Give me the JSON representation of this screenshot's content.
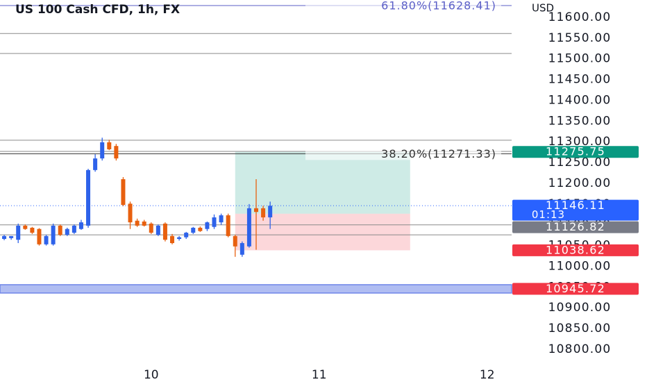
{
  "chart_data": {
    "type": "candlestick",
    "title": "US 100 Cash CFD, 1h, FX",
    "currency": "USD",
    "x": [
      -21,
      -20,
      -19,
      -18,
      -17,
      -16,
      -15,
      -14,
      -13,
      -12,
      -11,
      -10,
      -9,
      -8,
      -7,
      -6,
      -5,
      -4,
      -3,
      -2,
      -1,
      0,
      1,
      2,
      3,
      4,
      5,
      6,
      7,
      8,
      9,
      10,
      11,
      12,
      13,
      14,
      15,
      16,
      17
    ],
    "open": [
      11066,
      11068,
      11064,
      11098,
      11093,
      11090,
      11053,
      11053,
      11098,
      11076,
      11081,
      11090,
      11098,
      11232,
      11260,
      11299,
      11290,
      11210,
      11151,
      11110,
      11108,
      11103,
      11076,
      11103,
      11073,
      11066,
      11070,
      11081,
      11093,
      11090,
      11095,
      11106,
      11123,
      11073,
      11028,
      11048,
      11140,
      11140,
      11118
    ],
    "high": [
      11076,
      11073,
      11103,
      11101,
      11095,
      11092,
      11076,
      11103,
      11101,
      11093,
      11101,
      11112,
      11235,
      11270,
      11310,
      11305,
      11295,
      11215,
      11156,
      11115,
      11112,
      11106,
      11101,
      11106,
      11078,
      11073,
      11083,
      11095,
      11096,
      11108,
      11125,
      11127,
      11127,
      11076,
      11060,
      11150,
      11210,
      11146,
      11156
    ],
    "low": [
      11063,
      11064,
      11056,
      11088,
      11078,
      11050,
      11050,
      11050,
      11073,
      11073,
      11078,
      11088,
      11093,
      11228,
      11255,
      11280,
      11255,
      11145,
      11090,
      11095,
      11096,
      11078,
      11073,
      11060,
      11053,
      11062,
      11066,
      11078,
      11083,
      11085,
      11090,
      11100,
      11070,
      11023,
      11023,
      11045,
      11040,
      11110,
      11090
    ],
    "close": [
      11073,
      11073,
      11098,
      11090,
      11081,
      11053,
      11073,
      11098,
      11076,
      11090,
      11098,
      11106,
      11232,
      11260,
      11299,
      11282,
      11260,
      11148,
      11106,
      11098,
      11098,
      11081,
      11098,
      11064,
      11056,
      11070,
      11081,
      11093,
      11085,
      11106,
      11118,
      11123,
      11073,
      11048,
      11056,
      11140,
      11131,
      11118,
      11146
    ],
    "up_color": "#2e62ea",
    "down_color": "#e8600f",
    "xlim": [
      -21.6,
      51.5
    ],
    "xticks": [
      {
        "value": 0,
        "label": "10"
      },
      {
        "value": 24,
        "label": "11"
      },
      {
        "value": 48,
        "label": "12"
      }
    ],
    "ylim": [
      10721.3,
      11641.8
    ],
    "yticks": [
      {
        "value": 11600,
        "label": "11600.00"
      },
      {
        "value": 11550,
        "label": "11550.00"
      },
      {
        "value": 11500,
        "label": "11500.00"
      },
      {
        "value": 11450,
        "label": "11450.00"
      },
      {
        "value": 11400,
        "label": "11400.00"
      },
      {
        "value": 11350,
        "label": "11350.00"
      },
      {
        "value": 11300,
        "label": "11300.00"
      },
      {
        "value": 11250,
        "label": "11250.00"
      },
      {
        "value": 11200,
        "label": "11200.00"
      },
      {
        "value": 11150,
        "label": "11150.00"
      },
      {
        "value": 11100,
        "label": "11100.00"
      },
      {
        "value": 11050,
        "label": "11050.00"
      },
      {
        "value": 11000,
        "label": "11000.00"
      },
      {
        "value": 10950,
        "label": "10950.00"
      },
      {
        "value": 10900,
        "label": "10900.00"
      },
      {
        "value": 10850,
        "label": "10850.00"
      },
      {
        "value": 10800,
        "label": "10800.00"
      }
    ],
    "horizontal_lines": [
      11561,
      11513,
      11304,
      11277,
      11100,
      11076
    ],
    "fib_levels": [
      {
        "value": 11628.41,
        "label": "61.80%(11628.41)",
        "color": "#5b5fc7"
      },
      {
        "value": 11271.33,
        "label": "38.20%(11271.33)",
        "color": "#333333"
      }
    ],
    "support_zone": {
      "value": 10945.72,
      "color": "#6f86e8"
    },
    "position": {
      "x_start": 12,
      "x_end": 37,
      "entry": 11126.82,
      "target": 11275.75,
      "stop": 11038.62
    },
    "price_labels": [
      {
        "value": 11146.11,
        "label": "11146.11",
        "color": "#2962ff",
        "countdown": "01:13"
      },
      {
        "value": 11126.82,
        "label": "11126.82",
        "color": "#787b86"
      },
      {
        "value": 11275.75,
        "label": "11275.75",
        "color": "#089981"
      },
      {
        "value": 11038.62,
        "label": "11038.62",
        "color": "#f23645"
      },
      {
        "value": 10945.72,
        "label": "10945.72",
        "color": "#f23645"
      }
    ],
    "current_price": 11146.11
  }
}
